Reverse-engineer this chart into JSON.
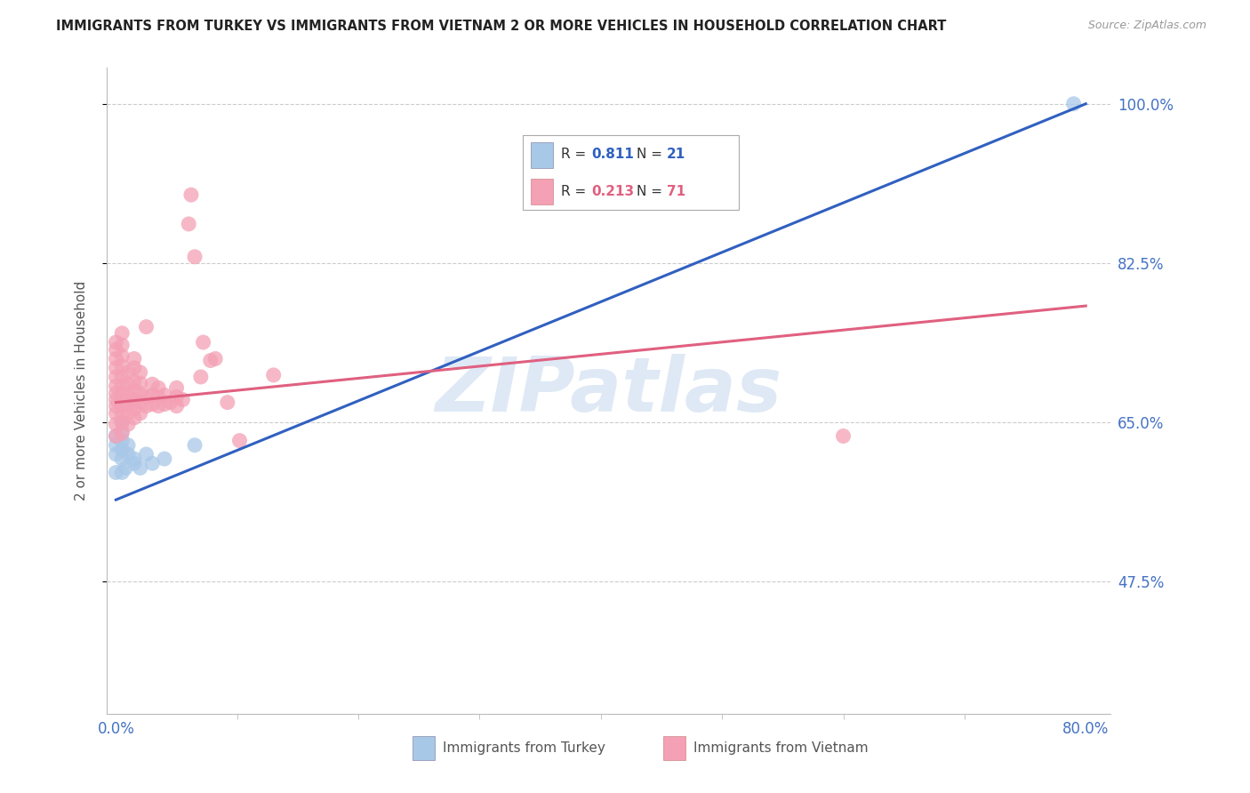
{
  "title": "IMMIGRANTS FROM TURKEY VS IMMIGRANTS FROM VIETNAM 2 OR MORE VEHICLES IN HOUSEHOLD CORRELATION CHART",
  "source": "Source: ZipAtlas.com",
  "ylabel": "2 or more Vehicles in Household",
  "ytick_labels": [
    "100.0%",
    "82.5%",
    "65.0%",
    "47.5%"
  ],
  "ytick_values": [
    1.0,
    0.825,
    0.65,
    0.475
  ],
  "ymin": 0.33,
  "ymax": 1.04,
  "xmin": -0.008,
  "xmax": 0.82,
  "turkey_color": "#a8c8e8",
  "vietnam_color": "#f4a0b5",
  "turkey_line_color": "#3060c0",
  "vietnam_line_color": "#e06080",
  "right_label_color": "#4472c4",
  "bottom_label_color": "#555555",
  "watermark": "ZIPatlas",
  "turkey_line": [
    0.0,
    0.565,
    0.8,
    1.0
  ],
  "vietnam_line": [
    0.0,
    0.672,
    0.8,
    0.778
  ],
  "turkey_points": [
    [
      0.0,
      0.595
    ],
    [
      0.0,
      0.615
    ],
    [
      0.0,
      0.625
    ],
    [
      0.0,
      0.635
    ],
    [
      0.005,
      0.595
    ],
    [
      0.005,
      0.61
    ],
    [
      0.005,
      0.62
    ],
    [
      0.005,
      0.63
    ],
    [
      0.005,
      0.64
    ],
    [
      0.005,
      0.65
    ],
    [
      0.008,
      0.6
    ],
    [
      0.01,
      0.615
    ],
    [
      0.01,
      0.625
    ],
    [
      0.015,
      0.605
    ],
    [
      0.015,
      0.61
    ],
    [
      0.02,
      0.6
    ],
    [
      0.025,
      0.615
    ],
    [
      0.03,
      0.605
    ],
    [
      0.04,
      0.61
    ],
    [
      0.065,
      0.625
    ],
    [
      0.79,
      1.0
    ]
  ],
  "vietnam_points": [
    [
      0.0,
      0.635
    ],
    [
      0.0,
      0.648
    ],
    [
      0.0,
      0.66
    ],
    [
      0.0,
      0.668
    ],
    [
      0.0,
      0.675
    ],
    [
      0.0,
      0.682
    ],
    [
      0.0,
      0.69
    ],
    [
      0.0,
      0.7
    ],
    [
      0.0,
      0.71
    ],
    [
      0.0,
      0.72
    ],
    [
      0.0,
      0.73
    ],
    [
      0.0,
      0.738
    ],
    [
      0.005,
      0.638
    ],
    [
      0.005,
      0.65
    ],
    [
      0.005,
      0.66
    ],
    [
      0.005,
      0.668
    ],
    [
      0.005,
      0.675
    ],
    [
      0.005,
      0.682
    ],
    [
      0.005,
      0.69
    ],
    [
      0.005,
      0.7
    ],
    [
      0.005,
      0.712
    ],
    [
      0.005,
      0.723
    ],
    [
      0.005,
      0.735
    ],
    [
      0.005,
      0.748
    ],
    [
      0.01,
      0.648
    ],
    [
      0.01,
      0.66
    ],
    [
      0.01,
      0.67
    ],
    [
      0.01,
      0.68
    ],
    [
      0.01,
      0.692
    ],
    [
      0.01,
      0.705
    ],
    [
      0.015,
      0.655
    ],
    [
      0.015,
      0.665
    ],
    [
      0.015,
      0.675
    ],
    [
      0.015,
      0.685
    ],
    [
      0.015,
      0.695
    ],
    [
      0.015,
      0.71
    ],
    [
      0.015,
      0.72
    ],
    [
      0.02,
      0.66
    ],
    [
      0.02,
      0.672
    ],
    [
      0.02,
      0.682
    ],
    [
      0.02,
      0.693
    ],
    [
      0.02,
      0.705
    ],
    [
      0.025,
      0.668
    ],
    [
      0.025,
      0.678
    ],
    [
      0.025,
      0.755
    ],
    [
      0.03,
      0.67
    ],
    [
      0.03,
      0.68
    ],
    [
      0.03,
      0.692
    ],
    [
      0.035,
      0.668
    ],
    [
      0.035,
      0.678
    ],
    [
      0.035,
      0.688
    ],
    [
      0.04,
      0.67
    ],
    [
      0.04,
      0.68
    ],
    [
      0.045,
      0.672
    ],
    [
      0.05,
      0.668
    ],
    [
      0.05,
      0.678
    ],
    [
      0.05,
      0.688
    ],
    [
      0.055,
      0.675
    ],
    [
      0.06,
      0.868
    ],
    [
      0.062,
      0.9
    ],
    [
      0.065,
      0.832
    ],
    [
      0.07,
      0.7
    ],
    [
      0.072,
      0.738
    ],
    [
      0.078,
      0.718
    ],
    [
      0.082,
      0.72
    ],
    [
      0.092,
      0.672
    ],
    [
      0.102,
      0.63
    ],
    [
      0.13,
      0.702
    ],
    [
      0.6,
      0.635
    ]
  ]
}
